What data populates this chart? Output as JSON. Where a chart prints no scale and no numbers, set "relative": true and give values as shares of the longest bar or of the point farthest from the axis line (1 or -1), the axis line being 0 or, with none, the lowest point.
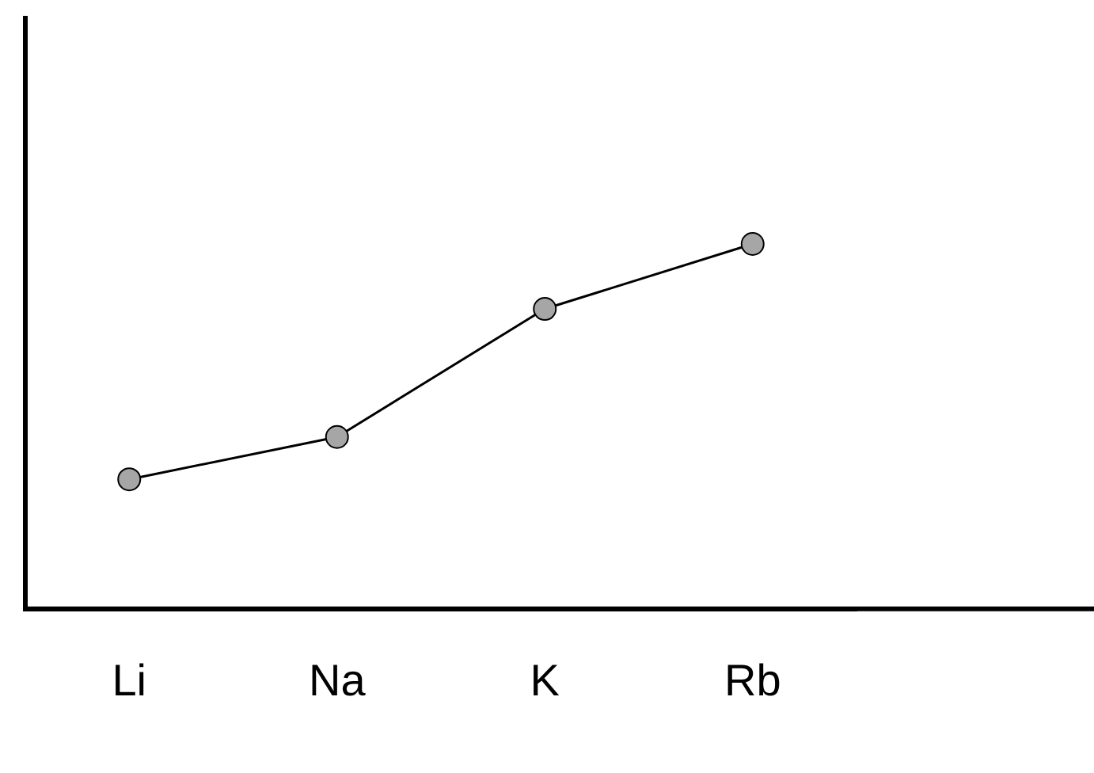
{
  "chart_data": {
    "type": "line",
    "relative": true,
    "categories": [
      "Li",
      "Na",
      "K",
      "Rb"
    ],
    "series": [
      {
        "color": "#000000",
        "values": [
          0.355,
          0.471,
          0.822,
          1
        ]
      }
    ],
    "marker": "circle",
    "line_style": "solid",
    "grid": false,
    "legend": false
  }
}
